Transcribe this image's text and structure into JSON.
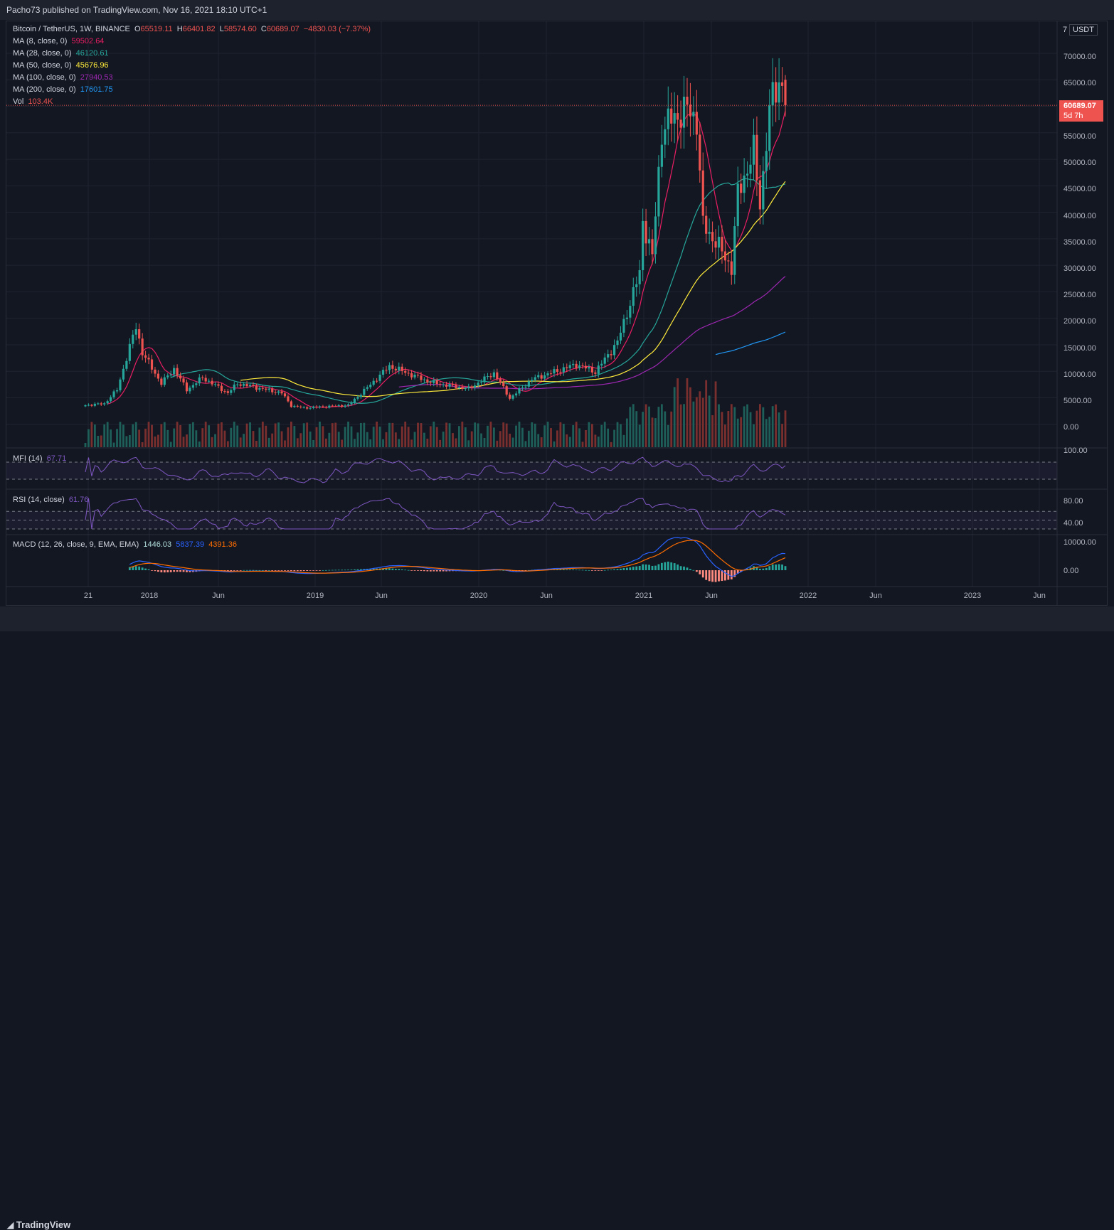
{
  "header": {
    "published": "Pacho73 published on TradingView.com, Nov 16, 2021 18:10 UTC+1"
  },
  "footer": {
    "logo": "TradingView"
  },
  "legend": {
    "symbol": "Bitcoin / TetherUS, 1W, BINANCE",
    "o_label": "O",
    "o": "65519.11",
    "h_label": "H",
    "h": "66401.82",
    "l_label": "L",
    "l": "58574.60",
    "c_label": "C",
    "c": "60689.07",
    "change": "−4830.03 (−7.37%)",
    "ma8_label": "MA (8, close, 0)",
    "ma8": "59502.64",
    "ma28_label": "MA (28, close, 0)",
    "ma28": "46120.61",
    "ma50_label": "MA (50, close, 0)",
    "ma50": "45676.96",
    "ma100_label": "MA (100, close, 0)",
    "ma100": "27940.53",
    "ma200_label": "MA (200, close, 0)",
    "ma200": "17601.75",
    "vol_label": "Vol",
    "vol": "103.4K",
    "mfi_label": "MFI (14)",
    "mfi": "67.71",
    "rsi_label": "RSI (14, close)",
    "rsi": "61.76",
    "macd_label": "MACD (12, 26, close, 9, EMA, EMA)",
    "macd_hist": "1446.03",
    "macd_line": "5837.39",
    "macd_signal": "4391.36"
  },
  "axis": {
    "currency": "USDT",
    "price_ticks": [
      "70000.00",
      "65000.00",
      "55000.00",
      "50000.00",
      "45000.00",
      "40000.00",
      "35000.00",
      "30000.00",
      "25000.00",
      "20000.00",
      "15000.00",
      "10000.00",
      "5000.00",
      "0.00"
    ],
    "last_price": "60689.07",
    "countdown": "5d 7h",
    "mfi_tick": "100.00",
    "rsi_ticks": [
      "80.00",
      "40.00"
    ],
    "macd_ticks": [
      "10000.00",
      "0.00"
    ]
  },
  "time_axis": [
    "21",
    "2018",
    "Jun",
    "2019",
    "Jun",
    "2020",
    "Jun",
    "2021",
    "Jun",
    "2022",
    "Jun",
    "2023",
    "Jun"
  ],
  "colors": {
    "up": "#26a69a",
    "down": "#ef5350",
    "ma8": "#e91e63",
    "ma28": "#26a69a",
    "ma50": "#ffeb3b",
    "ma100": "#9c27b0",
    "ma200": "#2196f3",
    "osc": "#7e57c2",
    "macd_line": "#2962ff",
    "macd_signal": "#ff6d00"
  },
  "chart_data": {
    "type": "candlestick",
    "title": "Bitcoin / TetherUS, 1W, BINANCE",
    "timeframe": "1W",
    "ylim": [
      0,
      72000
    ],
    "weekly_close_keypoints": [
      {
        "date": "2017-08-21",
        "close": 4100
      },
      {
        "date": "2017-10-02",
        "close": 4400
      },
      {
        "date": "2017-10-30",
        "close": 7000
      },
      {
        "date": "2017-12-11",
        "close": 19000
      },
      {
        "date": "2017-12-25",
        "close": 14000
      },
      {
        "date": "2018-02-05",
        "close": 8200
      },
      {
        "date": "2018-03-05",
        "close": 11000
      },
      {
        "date": "2018-04-02",
        "close": 7000
      },
      {
        "date": "2018-05-07",
        "close": 9300
      },
      {
        "date": "2018-07-02",
        "close": 6400
      },
      {
        "date": "2018-07-23",
        "close": 8200
      },
      {
        "date": "2018-10-29",
        "close": 6400
      },
      {
        "date": "2018-11-19",
        "close": 4000
      },
      {
        "date": "2018-12-17",
        "close": 3600
      },
      {
        "date": "2019-03-25",
        "close": 4100
      },
      {
        "date": "2019-05-13",
        "close": 8000
      },
      {
        "date": "2019-06-24",
        "close": 11500
      },
      {
        "date": "2019-09-23",
        "close": 8400
      },
      {
        "date": "2019-12-16",
        "close": 7200
      },
      {
        "date": "2020-02-10",
        "close": 10200
      },
      {
        "date": "2020-03-16",
        "close": 5400
      },
      {
        "date": "2020-05-04",
        "close": 9000
      },
      {
        "date": "2020-08-10",
        "close": 11800
      },
      {
        "date": "2020-09-21",
        "close": 10400
      },
      {
        "date": "2020-11-09",
        "close": 16000
      },
      {
        "date": "2020-12-28",
        "close": 29000
      },
      {
        "date": "2021-01-04",
        "close": 39000
      },
      {
        "date": "2021-01-25",
        "close": 32000
      },
      {
        "date": "2021-02-15",
        "close": 56000
      },
      {
        "date": "2021-03-08",
        "close": 58000
      },
      {
        "date": "2021-04-12",
        "close": 60000
      },
      {
        "date": "2021-05-03",
        "close": 58000
      },
      {
        "date": "2021-05-17",
        "close": 38000
      },
      {
        "date": "2021-06-14",
        "close": 35000
      },
      {
        "date": "2021-07-19",
        "close": 30000
      },
      {
        "date": "2021-08-02",
        "close": 44000
      },
      {
        "date": "2021-09-06",
        "close": 52000
      },
      {
        "date": "2021-09-20",
        "close": 42000
      },
      {
        "date": "2021-10-04",
        "close": 54000
      },
      {
        "date": "2021-10-18",
        "close": 63000
      },
      {
        "date": "2021-11-08",
        "close": 65519
      },
      {
        "date": "2021-11-15",
        "close": 60689
      }
    ],
    "last_candle": {
      "open": 65519.11,
      "high": 66401.82,
      "low": 58574.6,
      "close": 60689.07,
      "volume": "103.4K"
    },
    "moving_averages": [
      {
        "name": "MA (8, close, 0)",
        "value": 59502.64
      },
      {
        "name": "MA (28, close, 0)",
        "value": 46120.61
      },
      {
        "name": "MA (50, close, 0)",
        "value": 45676.96
      },
      {
        "name": "MA (100, close, 0)",
        "value": 27940.53
      },
      {
        "name": "MA (200, close, 0)",
        "value": 17601.75
      }
    ],
    "indicators": {
      "mfi": {
        "value": 67.71,
        "ylim": [
          0,
          100
        ]
      },
      "rsi": {
        "value": 61.76,
        "ylim": [
          0,
          100
        ]
      },
      "macd": {
        "histogram": 1446.03,
        "macd": 5837.39,
        "signal": 4391.36
      }
    }
  }
}
